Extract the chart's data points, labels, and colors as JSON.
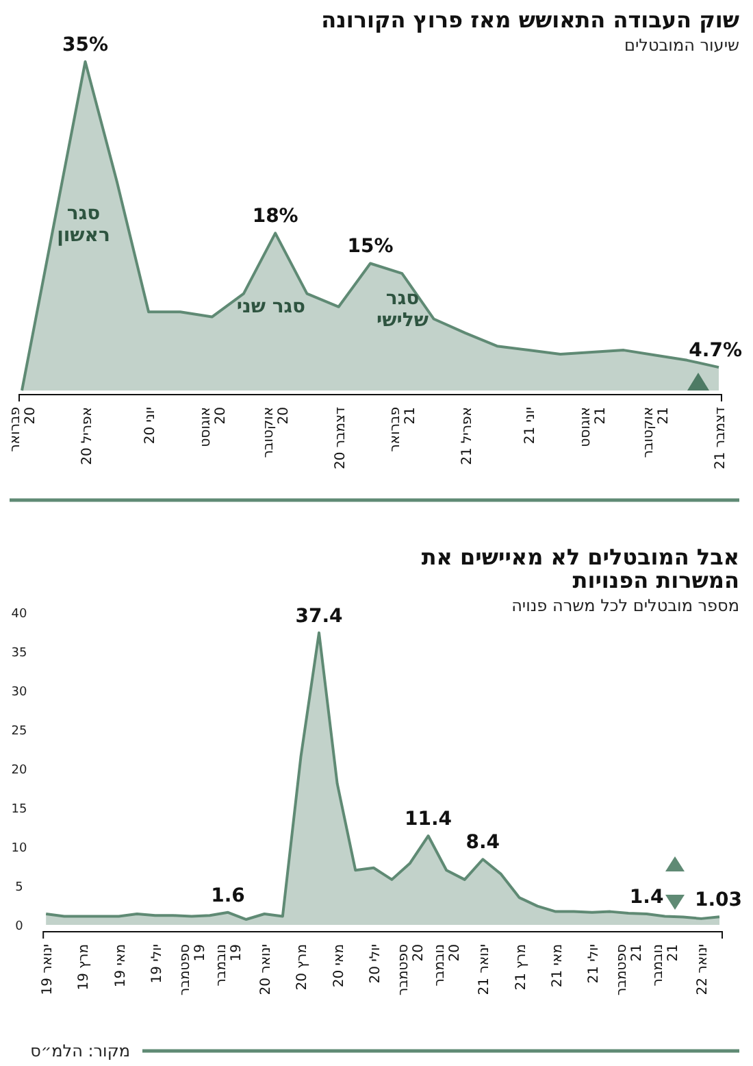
{
  "chart_data": [
    {
      "type": "area",
      "title": "שוק העבודה התאושש מאז פרוץ הקורונה",
      "subtitle": "שיעור המובטלים",
      "color": "#5f8a74",
      "tick_labels": "x",
      "categories": [
        "פברואר 20",
        null,
        "אפריל 20",
        null,
        "יוני 20",
        null,
        "אוגוסט 20",
        null,
        "אוקטובר 20",
        null,
        "דצמבר 20",
        null,
        "פברואר 21",
        null,
        "אפריל 21",
        null,
        "יוני 21",
        null,
        "אוגוסט 21",
        null,
        "אוקטובר 21",
        null,
        "דצמבר 21"
      ],
      "values": [
        2.4,
        18.7,
        35,
        23.1,
        10.2,
        10.2,
        9.7,
        12.0,
        18,
        12.0,
        10.7,
        15,
        14.0,
        9.5,
        8.1,
        6.8,
        6.4,
        6.0,
        6.2,
        6.4,
        5.9,
        5.4,
        4.7
      ],
      "value_labels": [
        null,
        null,
        "35%",
        null,
        null,
        null,
        null,
        null,
        "18%",
        null,
        null,
        "15%",
        null,
        null,
        null,
        null,
        null,
        null,
        null,
        null,
        null,
        null,
        "4.7%"
      ],
      "annotations": [
        "סגר ראשון",
        "סגר שני",
        "סגר שלישי"
      ]
    },
    {
      "type": "area",
      "title": "אבל המובטלים לא מאיישים את המשרות הפנויות",
      "subtitle": "מספר מובטלים לכל משרה פנויה",
      "color": "#5f8a74",
      "ylim": [
        0,
        40
      ],
      "yticks": [
        0,
        5,
        10,
        15,
        20,
        25,
        30,
        35,
        40
      ],
      "categories": [
        "ינואר 19",
        null,
        "מרץ 19",
        null,
        "מאי 19",
        null,
        "יולי 19",
        null,
        "ספטמבר 19",
        null,
        "נובמבר 19",
        null,
        "ינואר 20",
        null,
        "מרץ 20",
        null,
        "מאי 20",
        null,
        "יולי 20",
        null,
        "ספטמבר 20",
        null,
        "נובמבר 20",
        null,
        "ינואר 21",
        null,
        "מרץ 21",
        null,
        "מאי 21",
        null,
        "יולי 21",
        null,
        "ספטמבר 21",
        null,
        "נובמבר 21",
        null,
        "ינואר 22",
        null
      ],
      "values": [
        1.4,
        1.1,
        1.1,
        1.1,
        1.1,
        1.4,
        1.2,
        1.2,
        1.1,
        1.2,
        1.6,
        0.7,
        1.4,
        1.1,
        21.5,
        37.4,
        18.1,
        7.0,
        7.3,
        5.8,
        7.9,
        11.4,
        7.0,
        5.8,
        8.4,
        6.5,
        3.5,
        2.4,
        1.7,
        1.7,
        1.6,
        1.7,
        1.5,
        1.4,
        1.1,
        1.0,
        0.8,
        1.03
      ],
      "value_labels": [
        null,
        null,
        null,
        null,
        null,
        null,
        null,
        null,
        null,
        null,
        "1.6",
        null,
        null,
        null,
        null,
        "37.4",
        null,
        null,
        null,
        null,
        null,
        "11.4",
        null,
        null,
        "8.4",
        null,
        null,
        null,
        null,
        null,
        null,
        null,
        null,
        "1.4",
        null,
        null,
        null,
        "1.03"
      ],
      "annotations": [
        "מקור: הלמ״ס"
      ]
    }
  ]
}
